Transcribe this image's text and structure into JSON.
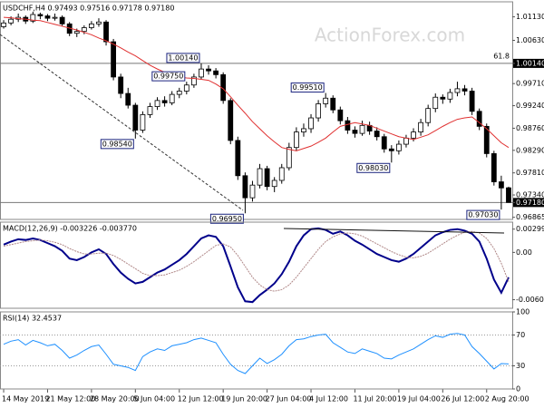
{
  "chart_data": [
    {
      "type": "candlestick",
      "title": "USDCHF,H4  0.97493 0.97516 0.97178 0.97180",
      "watermark": "ActionForex.com",
      "fib_label": "61.8",
      "open": [
        1.0092,
        1.01,
        1.0108,
        1.0112,
        1.0104,
        1.0118,
        1.0115,
        1.011,
        1.0112,
        1.0098,
        1.0078,
        1.0082,
        1.009,
        1.0098,
        1.0102,
        1.006,
        0.9985,
        0.995,
        0.9925,
        0.9872,
        0.9905,
        0.9922,
        0.9935,
        0.993,
        0.9948,
        0.9955,
        0.9968,
        0.9985,
        1.0002,
        0.9998,
        0.999,
        0.9935,
        0.985,
        0.9775,
        0.9728,
        0.9755,
        0.979,
        0.9752,
        0.9765,
        0.9792,
        0.9835,
        0.9868,
        0.9875,
        0.9898,
        0.9928,
        0.994,
        0.9915,
        0.9892,
        0.9872,
        0.9865,
        0.9882,
        0.987,
        0.9858,
        0.9832,
        0.9828,
        0.9842,
        0.9855,
        0.9868,
        0.9888,
        0.9918,
        0.9942,
        0.9938,
        0.9952,
        0.996,
        0.9955,
        0.9912,
        0.988,
        0.9822,
        0.9762,
        0.97493
      ],
      "high": [
        1.0106,
        1.0114,
        1.012,
        1.0116,
        1.0124,
        1.0122,
        1.0119,
        1.012,
        1.0116,
        1.0102,
        1.0088,
        1.0095,
        1.0104,
        1.011,
        1.0106,
        1.0066,
        0.9992,
        0.9962,
        0.993,
        0.9912,
        0.993,
        0.9942,
        0.9944,
        0.9955,
        0.9962,
        0.9975,
        0.9992,
        1.0014,
        1.001,
        1.0004,
        0.9995,
        0.994,
        0.9858,
        0.9782,
        0.9764,
        0.98,
        0.9796,
        0.9772,
        0.98,
        0.9845,
        0.9878,
        0.9886,
        0.9906,
        0.9936,
        0.9951,
        0.9946,
        0.9922,
        0.99,
        0.988,
        0.9892,
        0.989,
        0.9878,
        0.9864,
        0.984,
        0.985,
        0.9862,
        0.9876,
        0.9896,
        0.9926,
        0.995,
        0.9948,
        0.996,
        0.9975,
        0.9968,
        0.9962,
        0.9918,
        0.9886,
        0.9828,
        0.9775,
        0.97516
      ],
      "low": [
        1.0088,
        1.0095,
        1.0102,
        1.0098,
        1.01,
        1.0108,
        1.0104,
        1.0105,
        1.0094,
        1.0072,
        1.007,
        1.0076,
        1.0086,
        1.0092,
        1.0052,
        0.9978,
        0.994,
        0.9918,
        0.9854,
        0.9866,
        0.9898,
        0.9915,
        0.9922,
        0.9925,
        0.994,
        0.9948,
        0.9962,
        0.998,
        0.999,
        0.9982,
        0.9928,
        0.9842,
        0.9766,
        0.9695,
        0.972,
        0.9748,
        0.9744,
        0.974,
        0.9758,
        0.9786,
        0.9828,
        0.9858,
        0.9866,
        0.989,
        0.992,
        0.9908,
        0.9884,
        0.9864,
        0.9856,
        0.986,
        0.9862,
        0.985,
        0.9824,
        0.9803,
        0.982,
        0.9835,
        0.9848,
        0.986,
        0.988,
        0.991,
        0.9928,
        0.993,
        0.9944,
        0.9946,
        0.9904,
        0.9872,
        0.9814,
        0.9754,
        0.9703,
        0.97178
      ],
      "close": [
        1.01,
        1.0108,
        1.0112,
        1.0104,
        1.0118,
        1.0115,
        1.011,
        1.0112,
        1.0098,
        1.0078,
        1.0082,
        1.009,
        1.0098,
        1.0102,
        1.006,
        0.9985,
        0.995,
        0.9925,
        0.9872,
        0.9905,
        0.9922,
        0.9935,
        0.993,
        0.9948,
        0.9955,
        0.9968,
        0.9985,
        1.0002,
        0.9998,
        0.999,
        0.9935,
        0.985,
        0.9775,
        0.9728,
        0.9755,
        0.979,
        0.9752,
        0.9765,
        0.9792,
        0.9835,
        0.9868,
        0.9875,
        0.9898,
        0.9928,
        0.994,
        0.9915,
        0.9892,
        0.9872,
        0.9865,
        0.9882,
        0.987,
        0.9858,
        0.9832,
        0.9828,
        0.9842,
        0.9855,
        0.9868,
        0.9888,
        0.9918,
        0.9942,
        0.9938,
        0.9952,
        0.996,
        0.9955,
        0.9912,
        0.988,
        0.9822,
        0.9762,
        0.9749,
        0.9718
      ],
      "ma": {
        "color": "#e03030",
        "values": [
          1.0112,
          1.0111,
          1.0109,
          1.0108,
          1.0106,
          1.0105,
          1.0101,
          1.0097,
          1.0093,
          1.0089,
          1.0085,
          1.008,
          1.0075,
          1.0068,
          1.0062,
          1.0055,
          1.0047,
          1.0038,
          1.003,
          1.002,
          1.001,
          1.0002,
          0.9995,
          0.999,
          0.9985,
          0.9983,
          0.9982,
          0.998,
          0.9978,
          0.997,
          0.996,
          0.9943,
          0.9925,
          0.9908,
          0.989,
          0.9875,
          0.986,
          0.9847,
          0.9835,
          0.9831,
          0.9828,
          0.9833,
          0.9838,
          0.9846,
          0.9855,
          0.9868,
          0.988,
          0.9884,
          0.9888,
          0.9885,
          0.9882,
          0.9876,
          0.987,
          0.9864,
          0.9858,
          0.9855,
          0.9852,
          0.9857,
          0.9862,
          0.9871,
          0.988,
          0.9888,
          0.9895,
          0.9898,
          0.99,
          0.9888,
          0.9875,
          0.986,
          0.9845,
          0.9835
        ]
      },
      "ylim": [
        0.9682,
        1.0145
      ],
      "yticks": [
        {
          "value": 1.0113,
          "label": "1.01130"
        },
        {
          "value": 1.0063,
          "label": "1.00630"
        },
        {
          "value": 1.0014,
          "label": "1.00140",
          "boxed": true
        },
        {
          "value": 0.9971,
          "label": "0.99710"
        },
        {
          "value": 0.9924,
          "label": "0.99240"
        },
        {
          "value": 0.9876,
          "label": "0.98760"
        },
        {
          "value": 0.9829,
          "label": "0.98290"
        },
        {
          "value": 0.9781,
          "label": "0.97810"
        },
        {
          "value": 0.9734,
          "label": "0.97340"
        },
        {
          "value": 0.9718,
          "label": "0.97180",
          "boxed": true
        },
        {
          "value": 0.96865,
          "label": "0.96865"
        }
      ],
      "annotations": [
        {
          "value": 1.0014,
          "label": "1.00140",
          "side": "high"
        },
        {
          "value": 0.9854,
          "label": "0.98540",
          "side": "low"
        },
        {
          "value": 0.9695,
          "label": "0.96950",
          "side": "low"
        },
        {
          "value": 0.9951,
          "label": "0.99510",
          "side": "high"
        },
        {
          "value": 0.9803,
          "label": "0.98030",
          "side": "low"
        },
        {
          "value": 0.9975,
          "label": "0.99750",
          "side": "high"
        },
        {
          "value": 0.9703,
          "label": "0.97030",
          "side": "low"
        }
      ],
      "xticks": [
        {
          "value": 0,
          "label": "14 May 2019"
        },
        {
          "value": 6,
          "label": "21 May 12:00"
        },
        {
          "value": 12,
          "label": "28 May 20:00"
        },
        {
          "value": 18,
          "label": "5 Jun 04:00"
        },
        {
          "value": 24,
          "label": "12 Jun 12:00"
        },
        {
          "value": 30,
          "label": "19 Jun 20:00"
        },
        {
          "value": 36,
          "label": "27 Jun 04:00"
        },
        {
          "value": 42,
          "label": "4 Jul 12:00"
        },
        {
          "value": 48,
          "label": "11 Jul 20:00"
        },
        {
          "value": 54,
          "label": "19 Jul 04:00"
        },
        {
          "value": 60,
          "label": "26 Jul 12:00"
        },
        {
          "value": 66,
          "label": "2 Aug 20:00"
        }
      ]
    },
    {
      "type": "line",
      "title": "MACD(12,26,9) -0.003226 -0.003770",
      "series": [
        {
          "color": "#00008b",
          "values": [
            0.001,
            0.0014,
            0.0017,
            0.0016,
            0.0018,
            0.0016,
            0.0012,
            0.0008,
            0.0002,
            -0.0008,
            -0.001,
            -0.0006,
            0.0,
            0.0004,
            -0.0002,
            -0.0015,
            -0.0026,
            -0.0034,
            -0.004,
            -0.0038,
            -0.0032,
            -0.0026,
            -0.0022,
            -0.0016,
            -0.001,
            -0.0002,
            0.0008,
            0.0018,
            0.0022,
            0.002,
            0.0008,
            -0.0018,
            -0.0045,
            -0.0063,
            -0.0064,
            -0.0055,
            -0.0048,
            -0.004,
            -0.0028,
            -0.0012,
            0.0008,
            0.0022,
            0.003,
            0.0031,
            0.0029,
            0.0024,
            0.0027,
            0.0022,
            0.0015,
            0.001,
            0.0004,
            -0.0002,
            -0.0006,
            -0.001,
            -0.0012,
            -0.0008,
            -0.0002,
            0.0006,
            0.0014,
            0.0022,
            0.0026,
            0.0029,
            0.003,
            0.0028,
            0.0024,
            0.0014,
            -0.0008,
            -0.0035,
            -0.0052,
            -0.003226
          ]
        },
        {
          "color": "#b08888",
          "values": [
            0.0008,
            0.001,
            0.0012,
            0.0014,
            0.0015,
            0.0016,
            0.0015,
            0.0013,
            0.001,
            0.0005,
            0.0001,
            -0.0002,
            -0.0002,
            -0.0001,
            -0.0001,
            -0.0004,
            -0.0009,
            -0.0015,
            -0.0021,
            -0.0027,
            -0.003,
            -0.003,
            -0.0029,
            -0.0026,
            -0.0023,
            -0.0018,
            -0.0012,
            -0.0005,
            0.0002,
            0.0009,
            0.0011,
            0.0007,
            -0.0004,
            -0.0018,
            -0.0032,
            -0.0042,
            -0.0048,
            -0.005,
            -0.0048,
            -0.0042,
            -0.0032,
            -0.002,
            -0.0008,
            0.0004,
            0.0014,
            0.002,
            0.0024,
            0.0025,
            0.0024,
            0.0021,
            0.0016,
            0.0011,
            0.0006,
            0.0001,
            -0.0003,
            -0.0006,
            -0.0007,
            -0.0005,
            -0.0001,
            0.0005,
            0.0011,
            0.0017,
            0.0022,
            0.0026,
            0.0027,
            0.0025,
            0.0018,
            0.0005,
            -0.0014,
            -0.00377
          ]
        }
      ],
      "ylim": [
        -0.0072,
        0.0039
      ],
      "yticks": [
        0.002998,
        {
          "value": 0,
          "label": "0.00"
        },
        -0.006097
      ]
    },
    {
      "type": "line",
      "title": "RSI(14) 32.4537",
      "series": [
        {
          "color": "#1e90ff",
          "values": [
            58,
            62,
            64,
            57,
            63,
            60,
            56,
            58,
            50,
            40,
            44,
            50,
            55,
            57,
            45,
            32,
            30,
            28,
            24,
            42,
            48,
            52,
            50,
            56,
            58,
            60,
            64,
            66,
            63,
            60,
            45,
            32,
            24,
            20,
            30,
            40,
            33,
            38,
            45,
            56,
            64,
            65,
            68,
            70,
            71,
            60,
            54,
            48,
            46,
            52,
            49,
            46,
            40,
            39,
            44,
            48,
            52,
            58,
            64,
            69,
            67,
            71,
            72,
            70,
            55,
            46,
            36,
            26,
            33,
            32.4537
          ]
        }
      ],
      "ylim": [
        0,
        100
      ],
      "yticks": [
        100,
        70,
        30,
        0
      ],
      "grid": true
    }
  ]
}
